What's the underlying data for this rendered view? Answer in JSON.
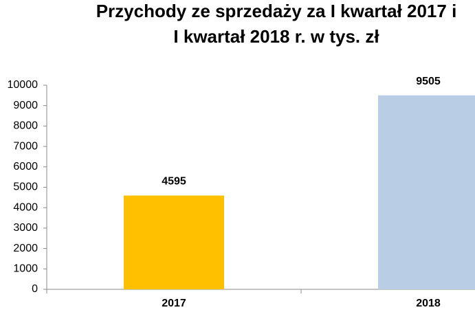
{
  "chart_data": {
    "type": "bar",
    "title": [
      "Przychody ze sprzedaży za I kwartał 2017 i",
      "I kwartał 2018 r. w tys. zł"
    ],
    "categories": [
      "2017",
      "2018"
    ],
    "values": [
      4595,
      9505
    ],
    "colors": [
      "#ffc000",
      "#b9cde5"
    ],
    "ylim": [
      0,
      10000
    ],
    "yticks": [
      0,
      1000,
      2000,
      3000,
      4000,
      5000,
      6000,
      7000,
      8000,
      9000,
      10000
    ],
    "grid": false
  }
}
